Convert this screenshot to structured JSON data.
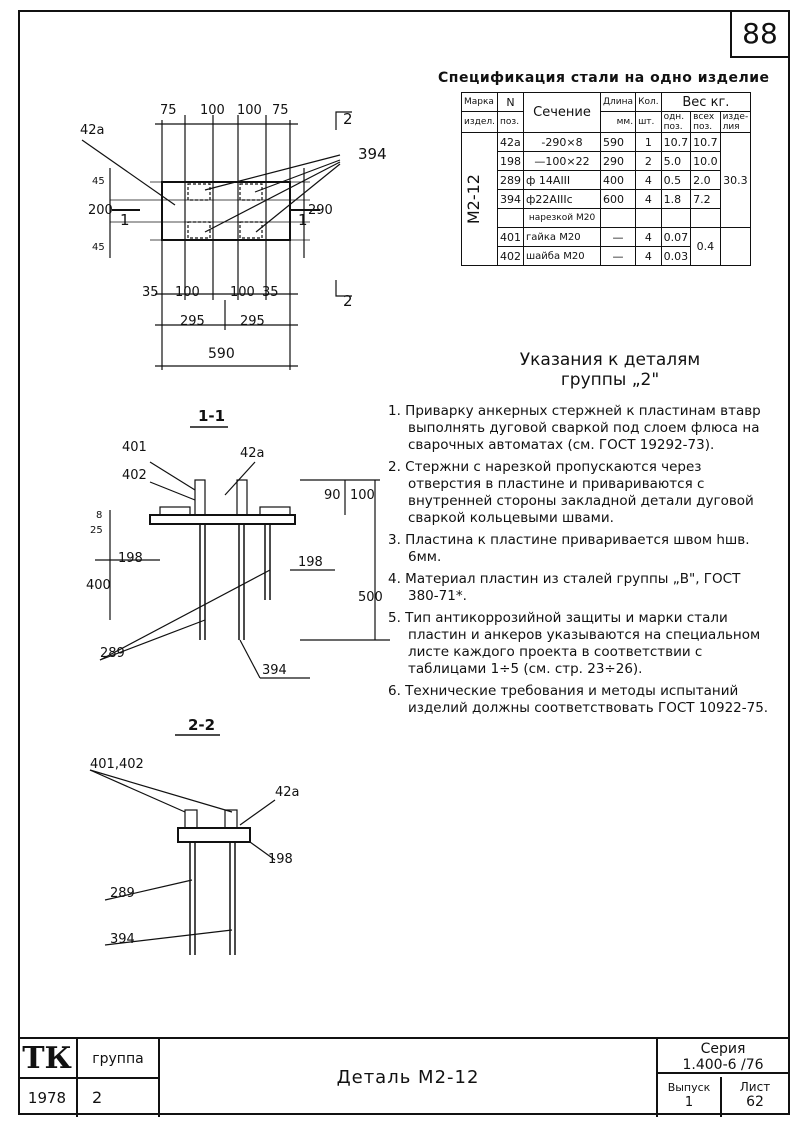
{
  "page_number": "88",
  "spec": {
    "title": "Спецификация стали на одно изделие",
    "headers": {
      "mark": [
        "Марка",
        "издел."
      ],
      "pos": [
        "N",
        "поз."
      ],
      "section": "Сечение",
      "length": [
        "Длина",
        "мм."
      ],
      "qty": [
        "Кол.",
        "шт."
      ],
      "weight": "Вес кг.",
      "w1": [
        "одн.",
        "поз."
      ],
      "w2": [
        "всех",
        "поз."
      ],
      "w3": [
        "изде-",
        "лия"
      ]
    },
    "mark_value": "М2-12",
    "total": "30.3",
    "group_total": "0.4",
    "rows": [
      {
        "pos": "42а",
        "section": "-290×8",
        "length": "590",
        "qty": "1",
        "w1": "10.7",
        "w2": "10.7"
      },
      {
        "pos": "198",
        "section": "—100×22",
        "length": "290",
        "qty": "2",
        "w1": "5.0",
        "w2": "10.0"
      },
      {
        "pos": "289",
        "section": "ф 14АIII",
        "length": "400",
        "qty": "4",
        "w1": "0.5",
        "w2": "2.0"
      },
      {
        "pos": "394",
        "section": "ф22АIIIс",
        "length": "600",
        "qty": "4",
        "w1": "1.8",
        "w2": "7.2"
      },
      {
        "pos": "",
        "section": "нарезкой М20",
        "length": "",
        "qty": "",
        "w1": "",
        "w2": ""
      },
      {
        "pos": "401",
        "section": "гайка М20",
        "length": "—",
        "qty": "4",
        "w1": "0.07",
        "w2": ""
      },
      {
        "pos": "402",
        "section": "шайба М20",
        "length": "—",
        "qty": "4",
        "w1": "0.03",
        "w2": ""
      }
    ]
  },
  "notes": {
    "title_line1": "Указания к деталям",
    "title_line2": "группы „2\"",
    "items": [
      "1. Приварку анкерных стержней к пластинам втавр выполнять дуговой сваркой под слоем флюса на сварочных автоматах (см. ГОСТ 19292-73).",
      "2. Стержни с нарезкой пропускаются через отверстия в пластине и привариваются с внутренней стороны закладной детали дуговой сваркой кольцевыми швами.",
      "3. Пластина к пластине приваривается швом hшв. 6мм.",
      "4. Материал пластин из сталей группы „В\", ГОСТ 380-71*.",
      "5. Тип антикоррозийной защиты и марки стали пластин и анкеров указываются на специальном листе каждого проекта в соответствии с таблицами 1÷5 (см. стр. 23÷26).",
      "6. Технические требования и методы испытаний изделий должны соответствовать ГОСТ 10922-75."
    ]
  },
  "drawing": {
    "plan": {
      "dims_top": [
        "75",
        "100",
        "100",
        "75"
      ],
      "dims_bottom": [
        "35",
        "100",
        "100",
        "35"
      ],
      "dims_half": [
        "295",
        "295"
      ],
      "dim_total": "590",
      "dims_left": [
        "45",
        "200",
        "45"
      ],
      "dim_right": "290",
      "label_plate": "42а",
      "label_bars": "394",
      "cut_1": "1",
      "cut_2": "2"
    },
    "section1": {
      "title": "1-1",
      "labels": [
        "401",
        "402",
        "42а",
        "198",
        "198",
        "289",
        "394"
      ],
      "dims": [
        "90",
        "100",
        "500",
        "400",
        "25",
        "8"
      ]
    },
    "section2": {
      "title": "2-2",
      "labels": [
        "401,402",
        "42а",
        "198",
        "289",
        "394"
      ]
    }
  },
  "stamp": {
    "org": "ТК",
    "group_label": "группа",
    "year": "1978",
    "group_value": "2",
    "title": "Деталь М2-12",
    "series_label": "Серия",
    "series_value": "1.400-6 /76",
    "issue_label": "Выпуск",
    "issue_value": "1",
    "sheet_label": "Лист",
    "sheet_value": "62"
  }
}
